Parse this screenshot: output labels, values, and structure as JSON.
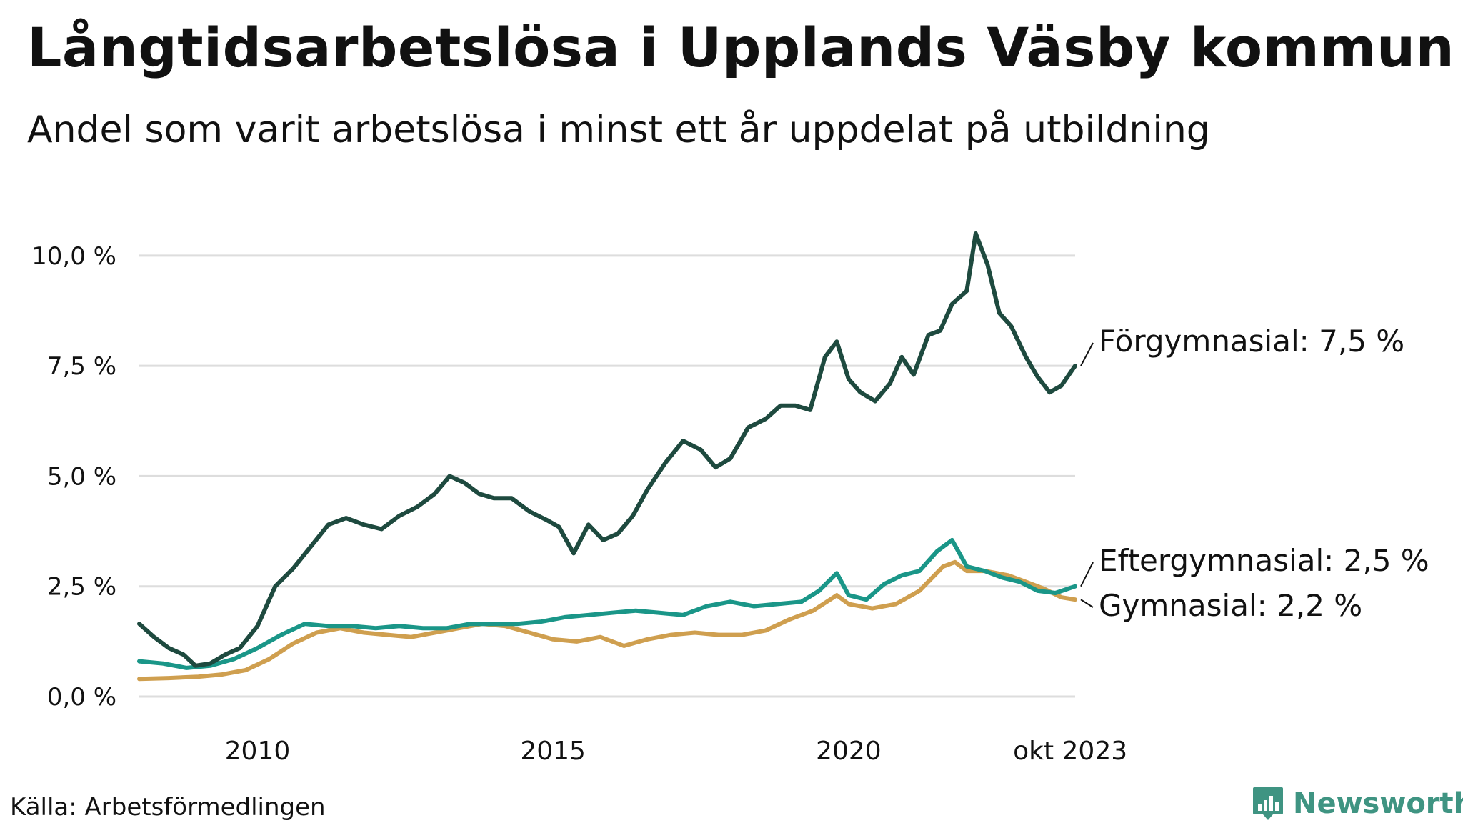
{
  "title": "Långtidsarbetslösa i Upplands Väsby kommun",
  "subtitle": "Andel som varit arbetslösa i minst ett år uppdelat på utbildning",
  "source": "Källa: Arbetsförmedlingen",
  "brand": "Newsworthy",
  "colors": {
    "forgymnasial": "#1e4a3f",
    "eftergymnasial": "#1a9688",
    "gymnasial": "#cf9f4f",
    "grid": "#dddddd",
    "brand": "#3f9482"
  },
  "icons": {
    "brand_logo": "bar-chart-badge-icon"
  },
  "chart_data": {
    "type": "line",
    "x_start": 2008.0,
    "x_end": 2023.833,
    "xlim": [
      2008.0,
      2023.833
    ],
    "ylim": [
      0,
      10.5
    ],
    "y_ticks": [
      0,
      2.5,
      5.0,
      7.5,
      10.0
    ],
    "y_tick_labels": [
      "0,0 %",
      "2,5 %",
      "5,0 %",
      "7,5 %",
      "10,0 %"
    ],
    "x_ticks": [
      2010,
      2015,
      2020,
      2023.75
    ],
    "x_tick_labels": [
      "2010",
      "2015",
      "2020",
      "okt 2023"
    ],
    "grid": "horizontal",
    "series": [
      {
        "name": "Förgymnasial",
        "label": "Förgymnasial: 7,5 %",
        "color": "#1e4a3f",
        "points": [
          [
            2008.0,
            1.65
          ],
          [
            2008.25,
            1.35
          ],
          [
            2008.5,
            1.1
          ],
          [
            2008.75,
            0.95
          ],
          [
            2008.95,
            0.7
          ],
          [
            2009.2,
            0.75
          ],
          [
            2009.45,
            0.95
          ],
          [
            2009.7,
            1.1
          ],
          [
            2010.0,
            1.6
          ],
          [
            2010.3,
            2.5
          ],
          [
            2010.6,
            2.9
          ],
          [
            2010.9,
            3.4
          ],
          [
            2011.2,
            3.9
          ],
          [
            2011.5,
            4.05
          ],
          [
            2011.8,
            3.9
          ],
          [
            2012.1,
            3.8
          ],
          [
            2012.4,
            4.1
          ],
          [
            2012.7,
            4.3
          ],
          [
            2013.0,
            4.6
          ],
          [
            2013.25,
            5.0
          ],
          [
            2013.5,
            4.85
          ],
          [
            2013.75,
            4.6
          ],
          [
            2014.0,
            4.5
          ],
          [
            2014.3,
            4.5
          ],
          [
            2014.6,
            4.2
          ],
          [
            2014.9,
            4.0
          ],
          [
            2015.1,
            3.85
          ],
          [
            2015.35,
            3.25
          ],
          [
            2015.6,
            3.9
          ],
          [
            2015.85,
            3.55
          ],
          [
            2016.1,
            3.7
          ],
          [
            2016.35,
            4.1
          ],
          [
            2016.6,
            4.7
          ],
          [
            2016.9,
            5.3
          ],
          [
            2017.2,
            5.8
          ],
          [
            2017.5,
            5.6
          ],
          [
            2017.75,
            5.2
          ],
          [
            2018.0,
            5.4
          ],
          [
            2018.3,
            6.1
          ],
          [
            2018.6,
            6.3
          ],
          [
            2018.85,
            6.6
          ],
          [
            2019.1,
            6.6
          ],
          [
            2019.35,
            6.5
          ],
          [
            2019.6,
            7.7
          ],
          [
            2019.8,
            8.05
          ],
          [
            2020.0,
            7.2
          ],
          [
            2020.2,
            6.9
          ],
          [
            2020.45,
            6.7
          ],
          [
            2020.7,
            7.1
          ],
          [
            2020.9,
            7.7
          ],
          [
            2021.1,
            7.3
          ],
          [
            2021.35,
            8.2
          ],
          [
            2021.55,
            8.3
          ],
          [
            2021.75,
            8.9
          ],
          [
            2022.0,
            9.2
          ],
          [
            2022.15,
            10.5
          ],
          [
            2022.35,
            9.8
          ],
          [
            2022.55,
            8.7
          ],
          [
            2022.75,
            8.4
          ],
          [
            2023.0,
            7.7
          ],
          [
            2023.2,
            7.25
          ],
          [
            2023.4,
            6.9
          ],
          [
            2023.6,
            7.05
          ],
          [
            2023.833,
            7.5
          ]
        ]
      },
      {
        "name": "Eftergymnasial",
        "label": "Eftergymnasial: 2,5 %",
        "color": "#1a9688",
        "points": [
          [
            2008.0,
            0.8
          ],
          [
            2008.4,
            0.75
          ],
          [
            2008.8,
            0.65
          ],
          [
            2009.2,
            0.7
          ],
          [
            2009.6,
            0.85
          ],
          [
            2010.0,
            1.1
          ],
          [
            2010.4,
            1.4
          ],
          [
            2010.8,
            1.65
          ],
          [
            2011.2,
            1.6
          ],
          [
            2011.6,
            1.6
          ],
          [
            2012.0,
            1.55
          ],
          [
            2012.4,
            1.6
          ],
          [
            2012.8,
            1.55
          ],
          [
            2013.2,
            1.55
          ],
          [
            2013.6,
            1.65
          ],
          [
            2014.0,
            1.65
          ],
          [
            2014.4,
            1.65
          ],
          [
            2014.8,
            1.7
          ],
          [
            2015.2,
            1.8
          ],
          [
            2015.6,
            1.85
          ],
          [
            2016.0,
            1.9
          ],
          [
            2016.4,
            1.95
          ],
          [
            2016.8,
            1.9
          ],
          [
            2017.2,
            1.85
          ],
          [
            2017.6,
            2.05
          ],
          [
            2018.0,
            2.15
          ],
          [
            2018.4,
            2.05
          ],
          [
            2018.8,
            2.1
          ],
          [
            2019.2,
            2.15
          ],
          [
            2019.5,
            2.4
          ],
          [
            2019.8,
            2.8
          ],
          [
            2020.0,
            2.3
          ],
          [
            2020.3,
            2.2
          ],
          [
            2020.6,
            2.55
          ],
          [
            2020.9,
            2.75
          ],
          [
            2021.2,
            2.85
          ],
          [
            2021.5,
            3.3
          ],
          [
            2021.75,
            3.55
          ],
          [
            2022.0,
            2.95
          ],
          [
            2022.3,
            2.85
          ],
          [
            2022.6,
            2.7
          ],
          [
            2022.9,
            2.6
          ],
          [
            2023.2,
            2.4
          ],
          [
            2023.5,
            2.35
          ],
          [
            2023.833,
            2.5
          ]
        ]
      },
      {
        "name": "Gymnasial",
        "label": "Gymnasial: 2,2 %",
        "color": "#cf9f4f",
        "points": [
          [
            2008.0,
            0.4
          ],
          [
            2008.5,
            0.42
          ],
          [
            2009.0,
            0.45
          ],
          [
            2009.4,
            0.5
          ],
          [
            2009.8,
            0.6
          ],
          [
            2010.2,
            0.85
          ],
          [
            2010.6,
            1.2
          ],
          [
            2011.0,
            1.45
          ],
          [
            2011.4,
            1.55
          ],
          [
            2011.8,
            1.45
          ],
          [
            2012.2,
            1.4
          ],
          [
            2012.6,
            1.35
          ],
          [
            2013.0,
            1.45
          ],
          [
            2013.4,
            1.55
          ],
          [
            2013.8,
            1.65
          ],
          [
            2014.2,
            1.6
          ],
          [
            2014.6,
            1.45
          ],
          [
            2015.0,
            1.3
          ],
          [
            2015.4,
            1.25
          ],
          [
            2015.8,
            1.35
          ],
          [
            2016.2,
            1.15
          ],
          [
            2016.6,
            1.3
          ],
          [
            2017.0,
            1.4
          ],
          [
            2017.4,
            1.45
          ],
          [
            2017.8,
            1.4
          ],
          [
            2018.2,
            1.4
          ],
          [
            2018.6,
            1.5
          ],
          [
            2019.0,
            1.75
          ],
          [
            2019.4,
            1.95
          ],
          [
            2019.8,
            2.3
          ],
          [
            2020.0,
            2.1
          ],
          [
            2020.4,
            2.0
          ],
          [
            2020.8,
            2.1
          ],
          [
            2021.2,
            2.4
          ],
          [
            2021.6,
            2.95
          ],
          [
            2021.8,
            3.05
          ],
          [
            2022.0,
            2.85
          ],
          [
            2022.3,
            2.85
          ],
          [
            2022.7,
            2.75
          ],
          [
            2023.0,
            2.6
          ],
          [
            2023.3,
            2.45
          ],
          [
            2023.6,
            2.25
          ],
          [
            2023.833,
            2.2
          ]
        ]
      }
    ]
  }
}
